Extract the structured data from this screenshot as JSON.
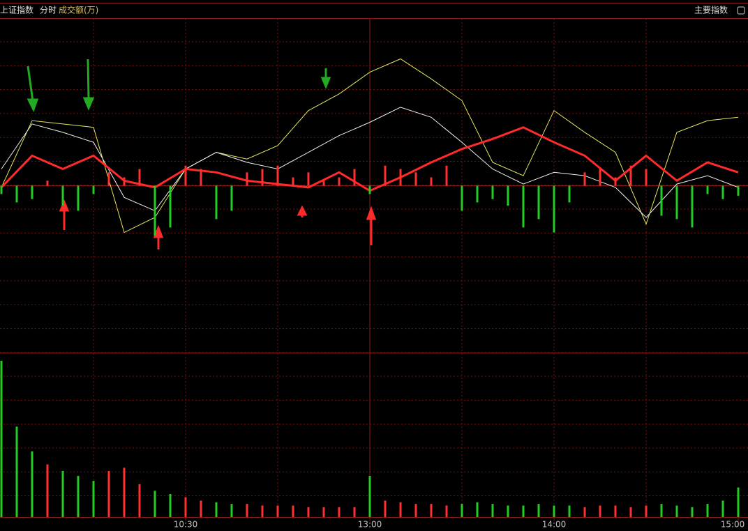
{
  "header": {
    "index_name": "上证指数",
    "mode": "分时",
    "indicator": "成交额(万)",
    "menu": "主要指数"
  },
  "chart_data": [
    {
      "type": "line",
      "x": [
        0,
        10,
        20,
        30,
        40,
        50,
        60,
        70,
        80,
        90,
        100,
        110,
        120,
        130,
        140,
        150,
        160,
        170,
        180,
        190,
        200,
        210,
        220,
        230,
        240
      ],
      "xlim": [
        0,
        240
      ],
      "ylim": [
        -100,
        100
      ],
      "series": [
        {
          "color": "#e8e860",
          "values": [
            -1,
            39,
            37,
            35,
            -28,
            -19,
            10,
            20,
            16,
            24,
            45,
            55,
            68,
            76,
            64,
            51,
            14,
            6,
            45,
            32,
            20,
            -23,
            32,
            39,
            41
          ]
        },
        {
          "color": "#f0f0f0",
          "values": [
            10,
            37,
            32,
            26,
            -7,
            -15,
            10,
            20,
            14,
            10,
            20,
            30,
            38,
            47,
            41,
            26,
            10,
            1,
            8,
            6,
            -1,
            -19,
            1,
            6,
            -1
          ]
        },
        {
          "color": "#ff2a2a",
          "values": [
            -1,
            18,
            10,
            18,
            3,
            -1,
            10,
            8,
            3,
            1,
            -1,
            8,
            -3,
            5,
            14,
            22,
            28,
            35,
            26,
            18,
            3,
            18,
            3,
            14,
            8
          ]
        }
      ]
    },
    {
      "type": "bar",
      "x": [
        0,
        5,
        10,
        15,
        20,
        25,
        30,
        35,
        40,
        45,
        50,
        55,
        60,
        65,
        70,
        75,
        80,
        85,
        90,
        95,
        100,
        105,
        110,
        115,
        120,
        125,
        130,
        135,
        140,
        145,
        150,
        155,
        160,
        165,
        170,
        175,
        180,
        185,
        190,
        195,
        200,
        205,
        210,
        215,
        220,
        225,
        230,
        235,
        240
      ],
      "xlim": [
        0,
        240
      ],
      "ylim": [
        -100,
        100
      ],
      "values": [
        -5,
        -10,
        -8,
        3,
        -12,
        -15,
        -5,
        8,
        5,
        10,
        -30,
        -25,
        12,
        10,
        -20,
        -15,
        8,
        10,
        12,
        5,
        8,
        3,
        5,
        10,
        -5,
        12,
        10,
        8,
        5,
        12,
        -15,
        -10,
        -8,
        -12,
        -25,
        -20,
        -28,
        -10,
        8,
        10,
        5,
        12,
        10,
        -18,
        -20,
        -25,
        -5,
        -8,
        -6
      ]
    },
    {
      "type": "bar",
      "x": [
        0,
        5,
        10,
        15,
        20,
        25,
        30,
        35,
        40,
        45,
        50,
        55,
        60,
        65,
        70,
        75,
        80,
        85,
        90,
        95,
        100,
        105,
        110,
        115,
        120,
        125,
        130,
        135,
        140,
        145,
        150,
        155,
        160,
        165,
        170,
        175,
        180,
        185,
        190,
        195,
        200,
        205,
        210,
        215,
        220,
        225,
        230,
        235,
        240
      ],
      "xlim": [
        0,
        240
      ],
      "ylim": [
        0,
        100
      ],
      "values": [
        95,
        55,
        40,
        32,
        28,
        25,
        22,
        28,
        30,
        20,
        16,
        14,
        12,
        10,
        9,
        8,
        8,
        7,
        7,
        7,
        6,
        6,
        6,
        6,
        25,
        10,
        9,
        8,
        8,
        7,
        8,
        9,
        8,
        7,
        7,
        8,
        7,
        7,
        6,
        7,
        7,
        6,
        7,
        8,
        7,
        6,
        8,
        10,
        18
      ],
      "xticks": [
        {
          "value": 60,
          "label": "10:30"
        },
        {
          "value": 120,
          "label": "13:00"
        },
        {
          "value": 180,
          "label": "14:00"
        },
        {
          "value": 240,
          "label": "15:00"
        }
      ]
    }
  ]
}
